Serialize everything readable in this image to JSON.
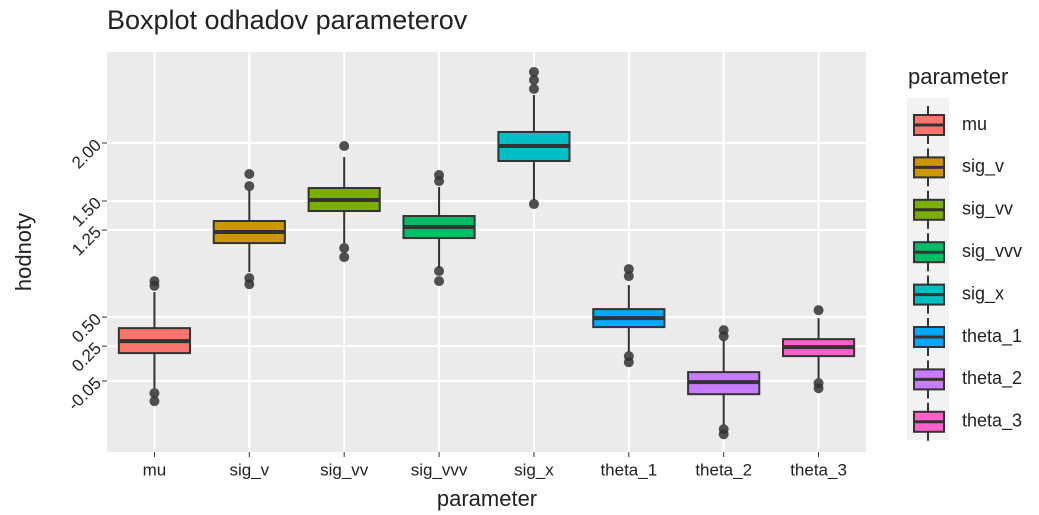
{
  "chart_data": {
    "type": "boxplot",
    "title": "Boxplot odhadov parameterov",
    "x_label": "parameter",
    "y_label": "hodnoty",
    "legend_title": "parameter",
    "legend_position": "right",
    "grid": true,
    "categories": [
      "mu",
      "sig_v",
      "sig_vv",
      "sig_vvv",
      "sig_x",
      "theta_1",
      "theta_2",
      "theta_3"
    ],
    "colors": [
      "#F8766D",
      "#CD9600",
      "#7CAE00",
      "#00BE67",
      "#00BFC4",
      "#00A9FF",
      "#C77CFF",
      "#FF61CC"
    ],
    "boxes": [
      {
        "whisker_low": -0.112,
        "q1": 0.19,
        "median": 0.293,
        "q3": 0.405,
        "whisker_high": 0.716,
        "outliers": [
          0.81,
          0.77,
          -0.155,
          -0.224
        ]
      },
      {
        "whisker_low": 0.888,
        "q1": 1.138,
        "median": 1.233,
        "q3": 1.328,
        "whisker_high": 1.595,
        "outliers": [
          1.733,
          1.629,
          0.836,
          0.784
        ]
      },
      {
        "whisker_low": 1.138,
        "q1": 1.414,
        "median": 1.509,
        "q3": 1.612,
        "whisker_high": 1.879,
        "outliers": [
          1.974,
          1.095,
          1.017
        ]
      },
      {
        "whisker_low": 0.922,
        "q1": 1.181,
        "median": 1.276,
        "q3": 1.371,
        "whisker_high": 1.621,
        "outliers": [
          1.724,
          1.672,
          0.897,
          0.81
        ]
      },
      {
        "whisker_low": 1.509,
        "q1": 1.845,
        "median": 1.974,
        "q3": 2.095,
        "whisker_high": 2.414,
        "outliers": [
          2.612,
          2.543,
          2.466,
          1.474
        ]
      },
      {
        "whisker_low": 0.198,
        "q1": 0.414,
        "median": 0.491,
        "q3": 0.569,
        "whisker_high": 0.776,
        "outliers": [
          0.914,
          0.853,
          0.164,
          0.112
        ]
      },
      {
        "whisker_low": -0.431,
        "q1": -0.164,
        "median": -0.06,
        "q3": 0.026,
        "whisker_high": 0.302,
        "outliers": [
          0.388,
          0.336,
          -0.466,
          -0.509
        ]
      },
      {
        "whisker_low": -0.034,
        "q1": 0.164,
        "median": 0.241,
        "q3": 0.31,
        "whisker_high": 0.491,
        "outliers": [
          0.56,
          -0.069,
          -0.112
        ]
      }
    ],
    "ylim": [
      -0.662,
      2.784
    ],
    "yticks": [
      -0.05,
      0.25,
      {
        "value": 0.5,
        "label": "0.50"
      },
      1.25,
      {
        "value": 1.5,
        "label": "1.50"
      },
      {
        "value": 2,
        "label": "2.00"
      }
    ]
  }
}
